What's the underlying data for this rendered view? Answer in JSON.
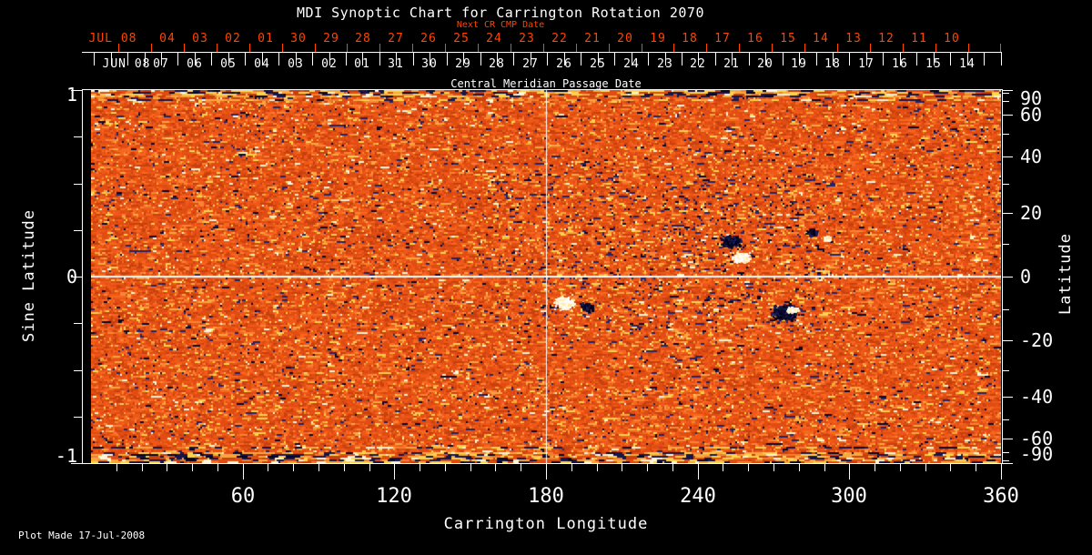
{
  "footer": {
    "text": "Plot Made 17-Jul-2008"
  },
  "colors": {
    "background": "#000000",
    "foreground": "#ffffff",
    "accent_red": "#ff4500",
    "base_orange": "#e85014"
  },
  "chart_data": {
    "type": "heatmap",
    "title": "MDI Synoptic Chart for Carrington Rotation 2070",
    "x_axis": {
      "label": "Carrington Longitude",
      "range": [
        0,
        360
      ],
      "major_tick_labels": [
        "60",
        "120",
        "180",
        "240",
        "300",
        "360"
      ],
      "minor_tick_step_deg": 10
    },
    "y_axis_left": {
      "label": "Sine Latitude",
      "range": [
        -1,
        1
      ],
      "tick_labels": [
        "1",
        "0",
        "-1"
      ],
      "tick_values": [
        1,
        0,
        -1
      ],
      "minor_tick_values": [
        0.75,
        0.5,
        0.25,
        -0.25,
        -0.5,
        -0.75
      ]
    },
    "y_axis_right": {
      "label": "Latitude",
      "tick_labels": [
        "90",
        "60",
        "40",
        "20",
        "0",
        "-20",
        "-40",
        "-60",
        "-90"
      ],
      "tick_values": [
        90,
        60,
        40,
        20,
        0,
        -20,
        -40,
        -60,
        -90
      ],
      "minor_tick_values": [
        80,
        70,
        50,
        30,
        10,
        -10,
        -30,
        -50,
        -70,
        -80
      ]
    },
    "top_axis": {
      "label": "Next CR CMP Date",
      "month_label": "JUL 08",
      "day_labels": [
        "04",
        "03",
        "02",
        "01",
        "30",
        "29",
        "28",
        "27",
        "26",
        "25",
        "24",
        "23",
        "22",
        "21",
        "20",
        "19",
        "18",
        "17",
        "16",
        "15",
        "14",
        "13",
        "12",
        "11",
        "10"
      ]
    },
    "cmp_axis": {
      "label": "Central Meridian Passage Date",
      "month_label": "JUN 08",
      "day_labels": [
        "07",
        "06",
        "05",
        "04",
        "03",
        "02",
        "01",
        "31",
        "30",
        "29",
        "28",
        "27",
        "26",
        "25",
        "24",
        "23",
        "22",
        "21",
        "20",
        "19",
        "18",
        "17",
        "16",
        "15",
        "14"
      ]
    },
    "reference_lines": {
      "vertical_at_longitude": 180,
      "horizontal_at_latitude": 0
    },
    "colormap": {
      "dark_red": "#c8400e",
      "base": "#e04c12",
      "mid": "#ee5818",
      "bright": "#f8671f",
      "light_orange": "#f9a83f",
      "yellow": "#ffd24f",
      "white": "#fff6d8",
      "negative_navy": "#22246a",
      "deep_negative": "#070728"
    },
    "polar_noise_bands": true,
    "active_regions": [
      {
        "lon": 253,
        "lat": 11,
        "polarity": "negative",
        "extent_deg": 9,
        "intensity": 1.6
      },
      {
        "lon": 257,
        "lat": 6,
        "polarity": "positive",
        "extent_deg": 8,
        "intensity": 1.6
      },
      {
        "lon": 285,
        "lat": 14,
        "polarity": "negative",
        "extent_deg": 5,
        "intensity": 1.4
      },
      {
        "lon": 291,
        "lat": 12,
        "polarity": "positive",
        "extent_deg": 4,
        "intensity": 1.2
      },
      {
        "lon": 187,
        "lat": -8,
        "polarity": "positive",
        "extent_deg": 10,
        "intensity": 1.1
      },
      {
        "lon": 196,
        "lat": -9,
        "polarity": "negative",
        "extent_deg": 6,
        "intensity": 0.9
      },
      {
        "lon": 274,
        "lat": -11,
        "polarity": "negative",
        "extent_deg": 12,
        "intensity": 1.3
      },
      {
        "lon": 277,
        "lat": -10,
        "polarity": "positive",
        "extent_deg": 5,
        "intensity": 1.3
      }
    ]
  }
}
